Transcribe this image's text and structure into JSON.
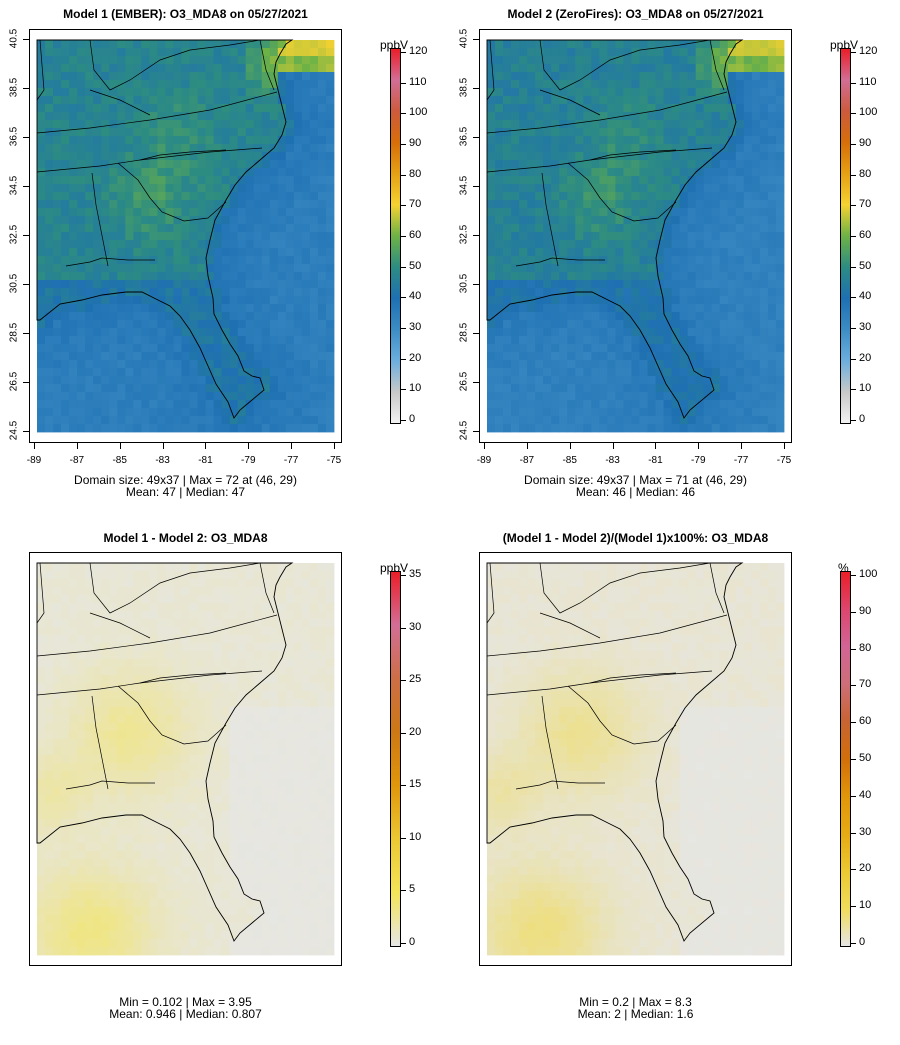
{
  "colors": {
    "map_ocean_gray": "#e4e4e4",
    "state_line": "#000000"
  },
  "panels": [
    {
      "id": "p1",
      "title": "Model 1 (EMBER): O3_MDA8 on 05/27/2021",
      "y_ticks": [
        "40.5",
        "38.5",
        "36.5",
        "34.5",
        "32.5",
        "30.5",
        "28.5",
        "26.5",
        "24.5"
      ],
      "x_ticks": [
        "-89",
        "-87",
        "-85",
        "-83",
        "-81",
        "-79",
        "-77",
        "-75"
      ],
      "stats_line1": "Domain size: 49x37 | Max = 72 at (46, 29)",
      "stats_line2": "Mean: 47 |  Median: 47",
      "colorbar": {
        "unit": "ppbV",
        "labels": [
          "120",
          "110",
          "100",
          "90",
          "80",
          "70",
          "60",
          "50",
          "40",
          "30",
          "20",
          "10",
          "0"
        ]
      }
    },
    {
      "id": "p2",
      "title": "Model 2 (ZeroFires): O3_MDA8 on 05/27/2021",
      "y_ticks": [
        "40.5",
        "38.5",
        "36.5",
        "34.5",
        "32.5",
        "30.5",
        "28.5",
        "26.5",
        "24.5"
      ],
      "x_ticks": [
        "-89",
        "-87",
        "-85",
        "-83",
        "-81",
        "-79",
        "-77",
        "-75"
      ],
      "stats_line1": "Domain size: 49x37 | Max = 71 at (46, 29)",
      "stats_line2": "Mean: 46 |  Median: 46",
      "colorbar": {
        "unit": "ppbV",
        "labels": [
          "120",
          "110",
          "100",
          "90",
          "80",
          "70",
          "60",
          "50",
          "40",
          "30",
          "20",
          "10",
          "0"
        ]
      }
    },
    {
      "id": "p3",
      "title": "Model 1 - Model 2: O3_MDA8",
      "stats_line1": "Min = 0.102 | Max = 3.95",
      "stats_line2": "Mean: 0.946 |  Median: 0.807",
      "colorbar": {
        "unit": "ppbV",
        "labels": [
          "35",
          "30",
          "25",
          "20",
          "15",
          "10",
          "5",
          "0"
        ]
      }
    },
    {
      "id": "p4",
      "title": "(Model 1 - Model 2)/(Model 1)x100%: O3_MDA8",
      "stats_line1": "Min = 0.2 | Max = 8.3",
      "stats_line2": "Mean: 2 |  Median: 1.6",
      "colorbar": {
        "unit": "%",
        "labels": [
          "100",
          "90",
          "80",
          "70",
          "60",
          "50",
          "40",
          "30",
          "20",
          "10",
          "0"
        ]
      }
    }
  ],
  "chart_data": [
    {
      "type": "heatmap",
      "title": "Model 1 (EMBER): O3_MDA8 on 05/27/2021",
      "variable": "O3_MDA8",
      "units": "ppbV",
      "domain_cols": 49,
      "domain_rows": 37,
      "xlim": [
        -89,
        -75
      ],
      "ylim": [
        24.5,
        40.5
      ],
      "color_range": [
        0,
        120
      ],
      "max": 72,
      "max_cell": [
        46,
        29
      ],
      "mean": 47,
      "median": 47
    },
    {
      "type": "heatmap",
      "title": "Model 2 (ZeroFires): O3_MDA8 on 05/27/2021",
      "variable": "O3_MDA8",
      "units": "ppbV",
      "domain_cols": 49,
      "domain_rows": 37,
      "xlim": [
        -89,
        -75
      ],
      "ylim": [
        24.5,
        40.5
      ],
      "color_range": [
        0,
        120
      ],
      "max": 71,
      "max_cell": [
        46,
        29
      ],
      "mean": 46,
      "median": 46
    },
    {
      "type": "heatmap",
      "title": "Model 1 - Model 2: O3_MDA8",
      "units": "ppbV",
      "color_range": [
        0,
        35
      ],
      "min": 0.102,
      "max": 3.95,
      "mean": 0.946,
      "median": 0.807
    },
    {
      "type": "heatmap",
      "title": "(Model 1 - Model 2)/(Model 1)x100%: O3_MDA8",
      "units": "%",
      "color_range": [
        0,
        100
      ],
      "min": 0.2,
      "max": 8.3,
      "mean": 2,
      "median": 1.6
    }
  ]
}
